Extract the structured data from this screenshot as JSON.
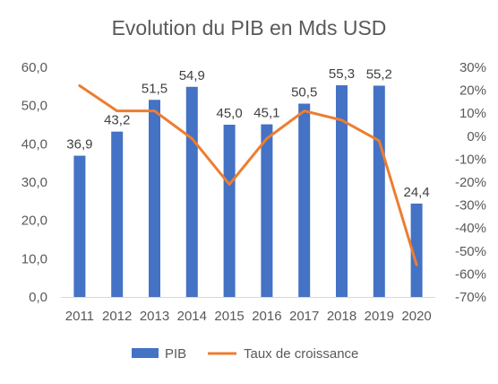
{
  "chart_data": {
    "type": "bar",
    "title": "Evolution du PIB en Mds USD",
    "categories": [
      "2011",
      "2012",
      "2013",
      "2014",
      "2015",
      "2016",
      "2017",
      "2018",
      "2019",
      "2020"
    ],
    "series": [
      {
        "name": "PIB",
        "type": "bar",
        "axis": "left",
        "color": "#4472C4",
        "values": [
          36.9,
          43.2,
          51.5,
          54.9,
          45.0,
          45.1,
          50.5,
          55.3,
          55.2,
          24.4
        ],
        "data_labels": [
          "36,9",
          "43,2",
          "51,5",
          "54,9",
          "45,0",
          "45,1",
          "50,5",
          "55,3",
          "55,2",
          "24,4"
        ]
      },
      {
        "name": "Taux de croissance",
        "type": "line",
        "axis": "right",
        "color": "#ED7D31",
        "values": [
          22,
          11,
          11,
          -1,
          -21,
          -1,
          11,
          7,
          -2,
          -56
        ]
      }
    ],
    "ylim_left": [
      0,
      60
    ],
    "ylim_right": [
      -70,
      30
    ],
    "yticks_left": [
      "0,0",
      "10,0",
      "20,0",
      "30,0",
      "40,0",
      "50,0",
      "60,0"
    ],
    "yticks_right": [
      "-70%",
      "-60%",
      "-50%",
      "-40%",
      "-30%",
      "-20%",
      "-10%",
      "0%",
      "10%",
      "20%",
      "30%"
    ],
    "grid": false,
    "legend_position": "bottom"
  }
}
